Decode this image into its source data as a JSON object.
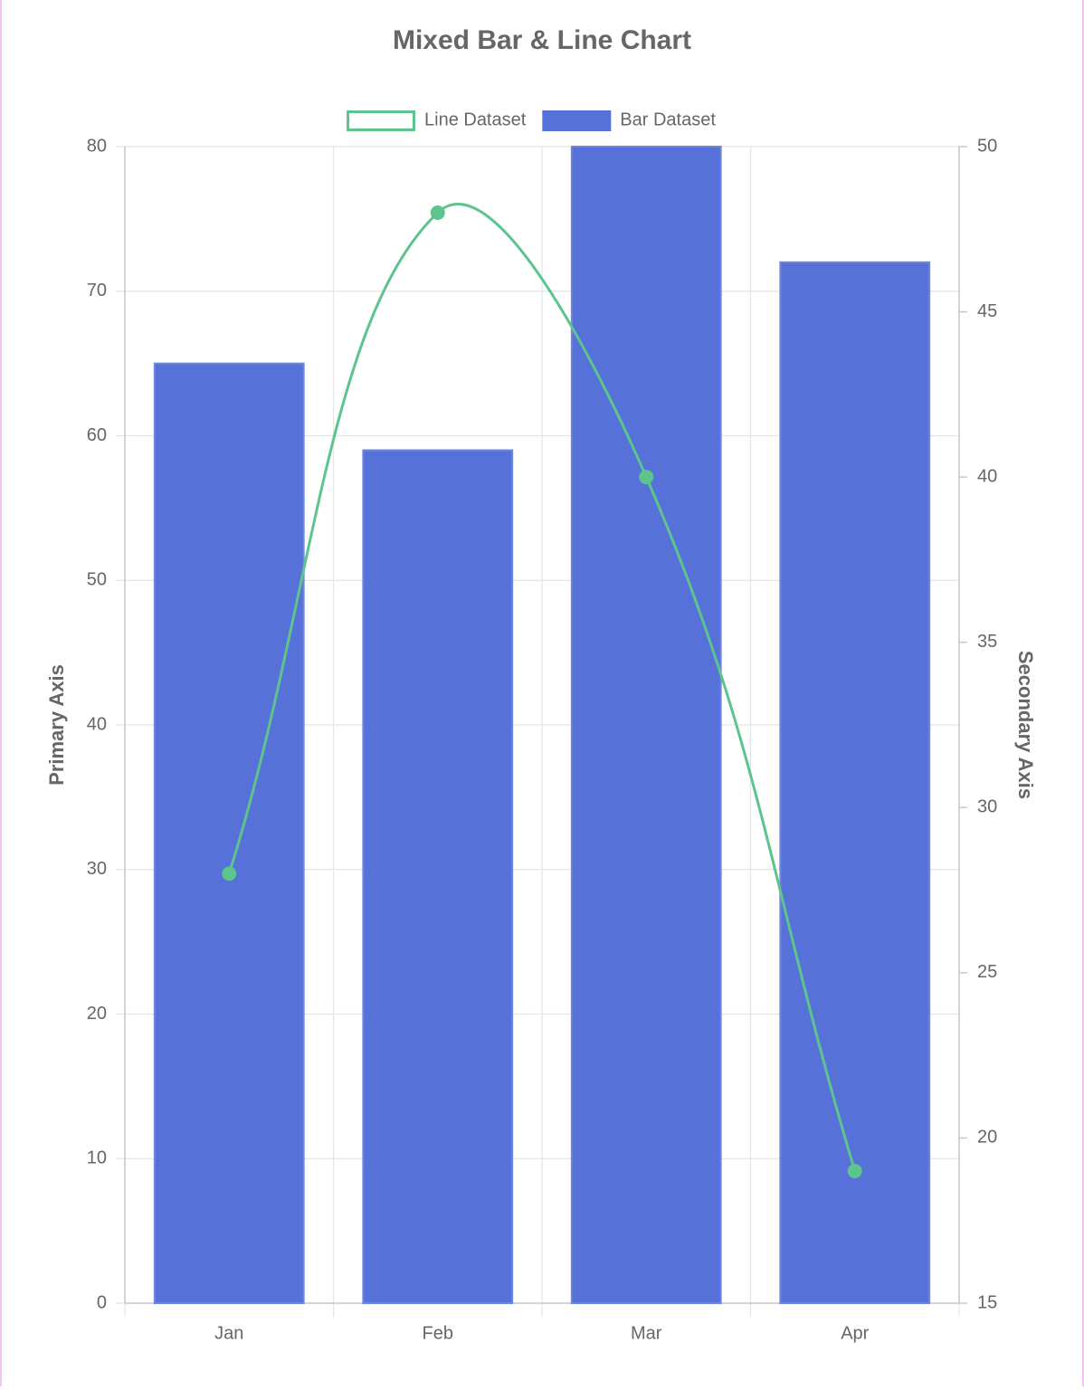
{
  "chart_data": {
    "type": "bar",
    "title": "Mixed Bar & Line Chart",
    "categories": [
      "Jan",
      "Feb",
      "Mar",
      "Apr"
    ],
    "series": [
      {
        "name": "Line Dataset",
        "type": "line",
        "color": "#5cc48c",
        "axis": "y2",
        "values": [
          28,
          48,
          40,
          19
        ]
      },
      {
        "name": "Bar Dataset",
        "type": "bar",
        "color": "#5672d8",
        "values": [
          65,
          59,
          80,
          72
        ]
      }
    ],
    "y_label": "Primary Axis",
    "y2_label": "Secondary Axis",
    "ylim": [
      0,
      80
    ],
    "yticks": [
      0,
      10,
      20,
      30,
      40,
      50,
      60,
      70,
      80
    ],
    "y2lim": [
      15,
      50
    ],
    "y2ticks": [
      15,
      20,
      25,
      30,
      35,
      40,
      45,
      50
    ],
    "grid": true,
    "legend": "top"
  }
}
